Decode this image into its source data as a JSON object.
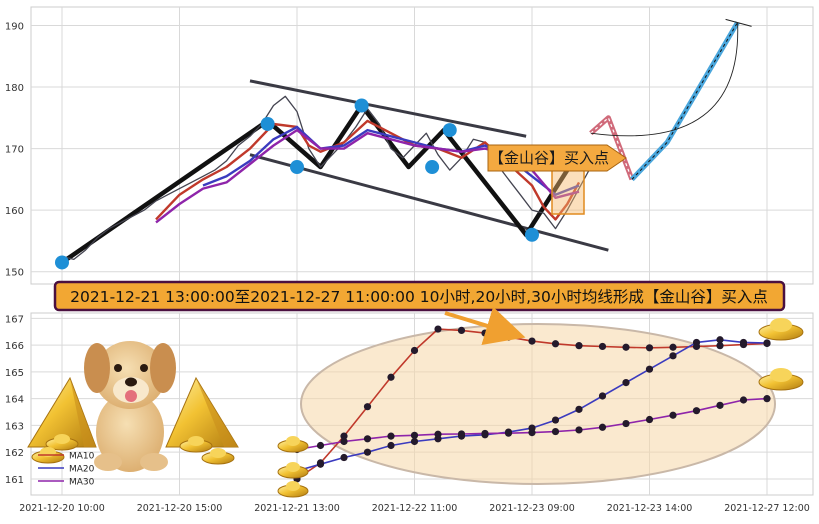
{
  "chart_data": [
    {
      "type": "line",
      "panel": "price",
      "y_ticks": [
        150,
        160,
        170,
        180,
        190
      ],
      "ylim": [
        148,
        193
      ],
      "series": [
        {
          "role": "price",
          "x": [
            0.0,
            0.1,
            0.2,
            0.3,
            0.4,
            0.5,
            0.6,
            0.7,
            0.8,
            0.9,
            1.0,
            1.1,
            1.2,
            1.3,
            1.4,
            1.5,
            1.6,
            1.7,
            1.8,
            1.9,
            2.0,
            2.1,
            2.2,
            2.3,
            2.4,
            2.5,
            2.6,
            2.7,
            2.8,
            2.9,
            3.0,
            3.1,
            3.2,
            3.3,
            3.4,
            3.5,
            3.6,
            3.7,
            3.8,
            3.9,
            4.0,
            4.1,
            4.2,
            4.3,
            4.4,
            4.5
          ],
          "values": [
            152.5,
            152.0,
            153.5,
            155.5,
            157.0,
            158.0,
            159.0,
            160.0,
            161.5,
            162.5,
            163.5,
            164.5,
            165.5,
            166.5,
            168.0,
            170.5,
            172.0,
            174.0,
            177.0,
            178.5,
            176.0,
            170.0,
            167.0,
            169.0,
            171.0,
            173.5,
            176.5,
            174.0,
            170.0,
            168.5,
            170.5,
            172.5,
            169.0,
            166.5,
            168.5,
            171.5,
            171.0,
            167.5,
            165.0,
            162.5,
            160.0,
            159.5,
            157.0,
            160.0,
            163.5,
            167.0
          ]
        },
        {
          "role": "MA10",
          "color": "#c0392b",
          "x": [
            0.8,
            1.0,
            1.2,
            1.4,
            1.6,
            1.8,
            2.0,
            2.1,
            2.2,
            2.4,
            2.6,
            2.8,
            3.0,
            3.2,
            3.4,
            3.6,
            3.8,
            4.0,
            4.1,
            4.2,
            4.3,
            4.4
          ],
          "values": [
            158.5,
            162.5,
            165.0,
            167.0,
            170.0,
            174.0,
            173.5,
            170.5,
            169.5,
            171.0,
            174.5,
            172.5,
            170.5,
            170.0,
            168.5,
            171.0,
            167.5,
            164.0,
            160.5,
            158.5,
            161.0,
            164.5
          ]
        },
        {
          "role": "MA20",
          "color": "#3b3bbf",
          "x": [
            1.2,
            1.4,
            1.6,
            1.8,
            2.0,
            2.2,
            2.4,
            2.6,
            2.8,
            3.0,
            3.2,
            3.4,
            3.6,
            3.8,
            4.0,
            4.2,
            4.4
          ],
          "values": [
            164.0,
            165.5,
            168.0,
            171.5,
            173.5,
            170.0,
            170.5,
            173.0,
            172.0,
            171.0,
            170.0,
            169.5,
            170.5,
            168.5,
            165.5,
            162.5,
            164.0
          ]
        },
        {
          "role": "MA30",
          "color": "#8e24aa",
          "x": [
            0.8,
            1.0,
            1.2,
            1.4,
            1.6,
            1.8,
            2.0,
            2.2,
            2.4,
            2.6,
            2.8,
            3.0,
            3.2,
            3.4,
            3.6,
            3.8,
            4.0,
            4.2,
            4.4
          ],
          "values": [
            158.0,
            161.0,
            163.5,
            164.5,
            167.5,
            170.5,
            173.0,
            170.0,
            170.0,
            172.5,
            171.5,
            170.5,
            170.0,
            169.5,
            170.0,
            169.0,
            166.5,
            162.0,
            163.0
          ]
        }
      ],
      "zigzag_points": [
        [
          0.0,
          151.5
        ],
        [
          1.75,
          174.5
        ],
        [
          2.2,
          167.0
        ],
        [
          2.55,
          177.0
        ],
        [
          2.95,
          167.0
        ],
        [
          3.25,
          173.0
        ],
        [
          3.95,
          156.0
        ],
        [
          4.35,
          168.0
        ]
      ],
      "markers": [
        [
          0.0,
          151.5
        ],
        [
          1.75,
          174.0
        ],
        [
          2.0,
          167.0
        ],
        [
          2.55,
          177.0
        ],
        [
          3.15,
          167.0
        ],
        [
          3.3,
          173.0
        ],
        [
          4.0,
          156.0
        ],
        [
          4.4,
          168.0
        ]
      ],
      "channel_lines": [
        [
          [
            1.6,
            181.0
          ],
          [
            3.95,
            172.0
          ]
        ],
        [
          [
            1.6,
            169.0
          ],
          [
            4.65,
            153.5
          ]
        ]
      ],
      "projection": [
        [
          4.5,
          172.5
        ],
        [
          4.65,
          175.0
        ],
        [
          4.85,
          165.0
        ],
        [
          5.15,
          171.0
        ],
        [
          5.75,
          190.5
        ]
      ],
      "annotation_label": "【金山谷】买入点"
    },
    {
      "type": "line",
      "panel": "moving-averages",
      "title": "2021-12-21 13:00:00至2021-12-27 11:00:00 10小时,20小时,30小时均线形成【金山谷】买入点",
      "x_ticks": [
        "2021-12-20 10:00",
        "2021-12-20 15:00",
        "2021-12-21 13:00",
        "2021-12-22 11:00",
        "2021-12-23 09:00",
        "2021-12-23 14:00",
        "2021-12-27 12:00"
      ],
      "y_ticks": [
        161,
        162,
        163,
        164,
        165,
        166,
        167
      ],
      "ylim": [
        160.4,
        167.2
      ],
      "xlim": [
        0,
        6.3
      ],
      "legend": [
        "MA10",
        "MA20",
        "MA30"
      ],
      "legend_placement": "bottom-left",
      "series": [
        {
          "name": "MA10",
          "color": "#c0392b",
          "x": [
            2.0,
            2.2,
            2.4,
            2.6,
            2.8,
            3.0,
            3.2,
            3.4,
            3.6,
            3.8,
            4.0,
            4.2,
            4.4,
            4.6,
            4.8,
            5.0,
            5.2,
            5.4,
            5.6,
            5.8,
            6.0
          ],
          "values": [
            161.0,
            161.6,
            162.6,
            163.7,
            164.8,
            165.8,
            166.6,
            166.55,
            166.45,
            166.3,
            166.15,
            166.05,
            165.98,
            165.95,
            165.92,
            165.9,
            165.92,
            165.95,
            165.98,
            166.02,
            166.06
          ]
        },
        {
          "name": "MA20",
          "color": "#3b3bbf",
          "x": [
            2.0,
            2.2,
            2.4,
            2.6,
            2.8,
            3.0,
            3.2,
            3.4,
            3.6,
            3.8,
            4.0,
            4.2,
            4.4,
            4.6,
            4.8,
            5.0,
            5.2,
            5.4,
            5.6,
            5.8,
            6.0
          ],
          "values": [
            161.3,
            161.55,
            161.8,
            162.0,
            162.25,
            162.4,
            162.5,
            162.6,
            162.65,
            162.75,
            162.9,
            163.2,
            163.6,
            164.1,
            164.6,
            165.1,
            165.6,
            166.1,
            166.2,
            166.1,
            166.08
          ]
        },
        {
          "name": "MA30",
          "color": "#8e24aa",
          "x": [
            2.0,
            2.2,
            2.4,
            2.6,
            2.8,
            3.0,
            3.2,
            3.4,
            3.6,
            3.8,
            4.0,
            4.2,
            4.4,
            4.6,
            4.8,
            5.0,
            5.2,
            5.4,
            5.6,
            5.8,
            6.0
          ],
          "values": [
            162.1,
            162.25,
            162.4,
            162.5,
            162.6,
            162.63,
            162.67,
            162.68,
            162.7,
            162.71,
            162.73,
            162.77,
            162.83,
            162.93,
            163.07,
            163.22,
            163.38,
            163.55,
            163.75,
            163.95,
            164.0
          ]
        }
      ]
    }
  ]
}
